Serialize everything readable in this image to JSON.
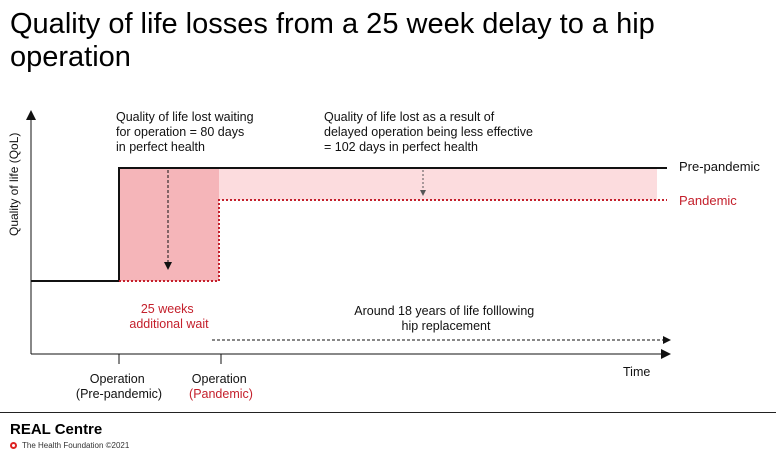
{
  "title": "Quality of life losses from a 25 week delay to a hip operation",
  "y_axis_label": "Quality of life (QoL)",
  "x_axis_label": "Time",
  "annotations": {
    "wait_loss_line1": "Quality of life lost waiting",
    "wait_loss_line2": "for operation = 80 days",
    "wait_loss_line3": "in perfect health",
    "effect_loss_line1": "Quality of life lost as a result of",
    "effect_loss_line2": "delayed operation being less effective",
    "effect_loss_line3": "= 102 days in perfect health",
    "wait_weeks_line1": "25 weeks",
    "wait_weeks_line2": "additional wait",
    "lifespan_line1": "Around 18 years of life folllowing",
    "lifespan_line2": "hip replacement"
  },
  "series_labels": {
    "pre_pandemic": "Pre-pandemic",
    "pandemic": "Pandemic"
  },
  "x_ticks": {
    "operation_pre_line1": "Operation",
    "operation_pre_line2": "(Pre-pandemic)",
    "operation_pandemic_line1": "Operation",
    "operation_pandemic_line2": "(Pandemic)"
  },
  "footer": {
    "brand": "REAL Centre",
    "credit": "The Health Foundation ©2021"
  },
  "colors": {
    "pandemic": "#c4202c",
    "wait_loss_fill": "#f5b5b9",
    "effect_loss_fill": "#fcdcde",
    "pre_pandemic": "#111111"
  }
}
